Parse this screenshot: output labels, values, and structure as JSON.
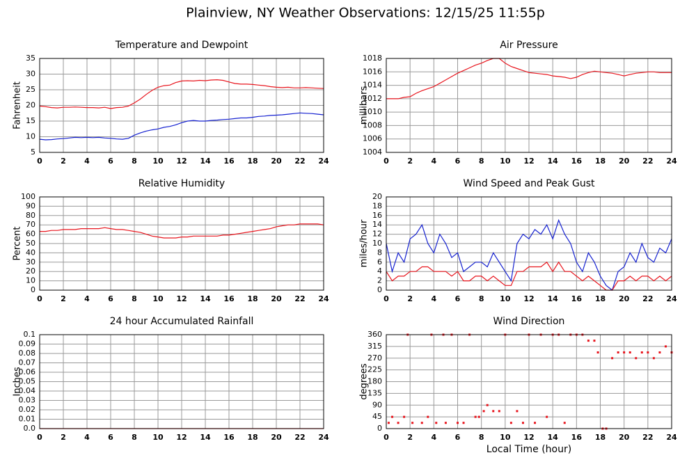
{
  "title": "Plainview, NY Weather Observations: 12/15/25 11:55p",
  "chart_data": [
    {
      "type": "line",
      "title": "Temperature and Dewpoint",
      "ylabel": "Fahrenheit",
      "xlim": [
        0,
        24
      ],
      "xticks": [
        0,
        2,
        4,
        6,
        8,
        10,
        12,
        14,
        16,
        18,
        20,
        22,
        24
      ],
      "ylim": [
        5,
        35
      ],
      "yticks": [
        5,
        10,
        15,
        20,
        25,
        30,
        35
      ],
      "grid": true,
      "x": [
        0,
        0.5,
        1,
        1.5,
        2,
        2.5,
        3,
        3.5,
        4,
        4.5,
        5,
        5.5,
        6,
        6.5,
        7,
        7.5,
        8,
        8.5,
        9,
        9.5,
        10,
        10.5,
        11,
        11.5,
        12,
        12.5,
        13,
        13.5,
        14,
        14.5,
        15,
        15.5,
        16,
        16.5,
        17,
        17.5,
        18,
        18.5,
        19,
        19.5,
        20,
        20.5,
        21,
        21.5,
        22,
        22.5,
        23,
        23.5,
        24
      ],
      "series": [
        {
          "color": "#e8141c",
          "values": [
            19.8,
            19.6,
            19.3,
            19.2,
            19.4,
            19.4,
            19.5,
            19.4,
            19.3,
            19.3,
            19.2,
            19.4,
            19.0,
            19.3,
            19.4,
            19.8,
            20.8,
            22.0,
            23.5,
            24.8,
            25.8,
            26.3,
            26.5,
            27.3,
            27.8,
            27.9,
            27.8,
            28.0,
            27.9,
            28.1,
            28.2,
            28.0,
            27.5,
            27.0,
            26.8,
            26.8,
            26.7,
            26.5,
            26.3,
            26.0,
            25.8,
            25.7,
            25.8,
            25.6,
            25.6,
            25.7,
            25.6,
            25.5,
            25.4
          ]
        },
        {
          "color": "#1420d0",
          "values": [
            9.2,
            9.0,
            9.1,
            9.3,
            9.4,
            9.6,
            9.8,
            9.7,
            9.8,
            9.7,
            9.8,
            9.6,
            9.5,
            9.3,
            9.2,
            9.5,
            10.5,
            11.2,
            11.8,
            12.2,
            12.5,
            13.0,
            13.3,
            13.8,
            14.5,
            15.0,
            15.2,
            15.0,
            15.0,
            15.2,
            15.3,
            15.5,
            15.6,
            15.8,
            16.0,
            16.0,
            16.2,
            16.5,
            16.6,
            16.8,
            16.9,
            17.0,
            17.2,
            17.4,
            17.6,
            17.5,
            17.4,
            17.2,
            17.0
          ]
        }
      ]
    },
    {
      "type": "line",
      "title": "Air Pressure",
      "ylabel": "millibars",
      "xlim": [
        0,
        24
      ],
      "xticks": [
        0,
        2,
        4,
        6,
        8,
        10,
        12,
        14,
        16,
        18,
        20,
        22,
        24
      ],
      "ylim": [
        1004,
        1018
      ],
      "yticks": [
        1004,
        1006,
        1008,
        1010,
        1012,
        1014,
        1016,
        1018
      ],
      "grid": true,
      "x": [
        0,
        0.5,
        1,
        1.5,
        2,
        2.5,
        3,
        3.5,
        4,
        4.5,
        5,
        5.5,
        6,
        6.5,
        7,
        7.5,
        8,
        8.5,
        9,
        9.5,
        10,
        10.5,
        11,
        11.5,
        12,
        12.5,
        13,
        13.5,
        14,
        14.5,
        15,
        15.5,
        16,
        16.5,
        17,
        17.5,
        18,
        18.5,
        19,
        19.5,
        20,
        20.5,
        21,
        21.5,
        22,
        22.5,
        23,
        23.5,
        24
      ],
      "series": [
        {
          "color": "#e8141c",
          "values": [
            1012.0,
            1012.0,
            1012.0,
            1012.2,
            1012.3,
            1012.8,
            1013.2,
            1013.5,
            1013.8,
            1014.3,
            1014.8,
            1015.3,
            1015.8,
            1016.2,
            1016.6,
            1017.0,
            1017.3,
            1017.7,
            1018.0,
            1018.0,
            1017.3,
            1016.8,
            1016.5,
            1016.2,
            1015.9,
            1015.8,
            1015.7,
            1015.6,
            1015.4,
            1015.3,
            1015.2,
            1015.0,
            1015.2,
            1015.6,
            1015.9,
            1016.1,
            1016.0,
            1015.9,
            1015.8,
            1015.6,
            1015.4,
            1015.6,
            1015.8,
            1015.9,
            1016.0,
            1016.0,
            1015.9,
            1015.9,
            1015.9
          ]
        }
      ]
    },
    {
      "type": "line",
      "title": "Relative Humidity",
      "ylabel": "Percent",
      "xlim": [
        0,
        24
      ],
      "xticks": [
        0,
        2,
        4,
        6,
        8,
        10,
        12,
        14,
        16,
        18,
        20,
        22,
        24
      ],
      "ylim": [
        0,
        100
      ],
      "yticks": [
        0,
        10,
        20,
        30,
        40,
        50,
        60,
        70,
        80,
        90,
        100
      ],
      "grid": true,
      "x": [
        0,
        0.5,
        1,
        1.5,
        2,
        2.5,
        3,
        3.5,
        4,
        4.5,
        5,
        5.5,
        6,
        6.5,
        7,
        7.5,
        8,
        8.5,
        9,
        9.5,
        10,
        10.5,
        11,
        11.5,
        12,
        12.5,
        13,
        13.5,
        14,
        14.5,
        15,
        15.5,
        16,
        16.5,
        17,
        17.5,
        18,
        18.5,
        19,
        19.5,
        20,
        20.5,
        21,
        21.5,
        22,
        22.5,
        23,
        23.5,
        24
      ],
      "series": [
        {
          "color": "#e8141c",
          "values": [
            63,
            63,
            64,
            64,
            65,
            65,
            65,
            66,
            66,
            66,
            66,
            67,
            66,
            65,
            65,
            64,
            63,
            62,
            60,
            58,
            57,
            56,
            56,
            56,
            57,
            57,
            58,
            58,
            58,
            58,
            58,
            59,
            59,
            60,
            61,
            62,
            63,
            64,
            65,
            66,
            68,
            69,
            70,
            70,
            71,
            71,
            71,
            71,
            70
          ]
        }
      ]
    },
    {
      "type": "line",
      "title": "Wind Speed and Peak Gust",
      "ylabel": "miles/hour",
      "xlim": [
        0,
        24
      ],
      "xticks": [
        0,
        2,
        4,
        6,
        8,
        10,
        12,
        14,
        16,
        18,
        20,
        22,
        24
      ],
      "ylim": [
        0,
        20
      ],
      "yticks": [
        0,
        2,
        4,
        6,
        8,
        10,
        12,
        14,
        16,
        18,
        20
      ],
      "grid": true,
      "x": [
        0,
        0.5,
        1,
        1.5,
        2,
        2.5,
        3,
        3.5,
        4,
        4.5,
        5,
        5.5,
        6,
        6.5,
        7,
        7.5,
        8,
        8.5,
        9,
        9.5,
        10,
        10.5,
        11,
        11.5,
        12,
        12.5,
        13,
        13.5,
        14,
        14.5,
        15,
        15.5,
        16,
        16.5,
        17,
        17.5,
        18,
        18.5,
        19,
        19.5,
        20,
        20.5,
        21,
        21.5,
        22,
        22.5,
        23,
        23.5,
        24
      ],
      "series": [
        {
          "color": "#1420d0",
          "values": [
            10,
            4,
            8,
            6,
            11,
            12,
            14,
            10,
            8,
            12,
            10,
            7,
            8,
            4,
            5,
            6,
            6,
            5,
            8,
            6,
            4,
            2,
            10,
            12,
            11,
            13,
            12,
            14,
            11,
            15,
            12,
            10,
            6,
            4,
            8,
            6,
            3,
            1,
            0,
            4,
            5,
            8,
            6,
            10,
            7,
            6,
            9,
            8,
            11
          ]
        },
        {
          "color": "#e8141c",
          "values": [
            4,
            2,
            3,
            3,
            4,
            4,
            5,
            5,
            4,
            4,
            4,
            3,
            4,
            2,
            2,
            3,
            3,
            2,
            3,
            2,
            1,
            1,
            4,
            4,
            5,
            5,
            5,
            6,
            4,
            6,
            4,
            4,
            3,
            2,
            3,
            2,
            1,
            0,
            0,
            2,
            2,
            3,
            2,
            3,
            3,
            2,
            3,
            2,
            3
          ]
        }
      ]
    },
    {
      "type": "line",
      "title": "24 hour Accumulated Rainfall",
      "ylabel": "Inches",
      "xlim": [
        0,
        24
      ],
      "xticks": [
        0,
        2,
        4,
        6,
        8,
        10,
        12,
        14,
        16,
        18,
        20,
        22,
        24
      ],
      "ylim": [
        0,
        0.1
      ],
      "yticks": [
        {
          "value": 0,
          "label": "0.0"
        },
        0.01,
        0.02,
        0.03,
        0.04,
        0.05,
        0.06,
        0.07,
        0.08,
        0.09,
        0.1
      ],
      "grid": true,
      "x": [
        0,
        24
      ],
      "series": [
        {
          "color": "#e8141c",
          "values": [
            0,
            0
          ]
        }
      ]
    },
    {
      "type": "scatter",
      "title": "Wind Direction",
      "ylabel": "degrees",
      "xlabel": "Local Time (hour)",
      "xlim": [
        0,
        24
      ],
      "xticks": [
        0,
        2,
        4,
        6,
        8,
        10,
        12,
        14,
        16,
        18,
        20,
        22,
        24
      ],
      "ylim": [
        0,
        360
      ],
      "yticks": [
        0,
        45,
        90,
        135,
        180,
        225,
        270,
        315,
        360
      ],
      "grid": true,
      "x": [
        0.2,
        0.5,
        1,
        1.5,
        1.8,
        2.2,
        3,
        3.5,
        3.8,
        4.2,
        4.8,
        5,
        5.5,
        6,
        6.5,
        7,
        7.5,
        7.8,
        8.2,
        8.5,
        9,
        9.5,
        10,
        10.5,
        11,
        11.5,
        12,
        12.5,
        13,
        13.5,
        14,
        14.5,
        15,
        15.5,
        16,
        16.5,
        17,
        17.5,
        17.8,
        18.2,
        18.5,
        19,
        19.5,
        20,
        20.5,
        21,
        21.5,
        22,
        22.5,
        23,
        23.5,
        24
      ],
      "series": [
        {
          "color": "#e8141c",
          "values": [
            22,
            45,
            22,
            45,
            360,
            22,
            22,
            45,
            360,
            22,
            360,
            22,
            360,
            22,
            22,
            360,
            45,
            45,
            67,
            90,
            67,
            67,
            360,
            22,
            67,
            22,
            360,
            22,
            360,
            45,
            360,
            360,
            22,
            360,
            360,
            360,
            337,
            337,
            292,
            0,
            0,
            270,
            292,
            292,
            292,
            270,
            292,
            292,
            270,
            292,
            315,
            292
          ]
        }
      ]
    }
  ]
}
